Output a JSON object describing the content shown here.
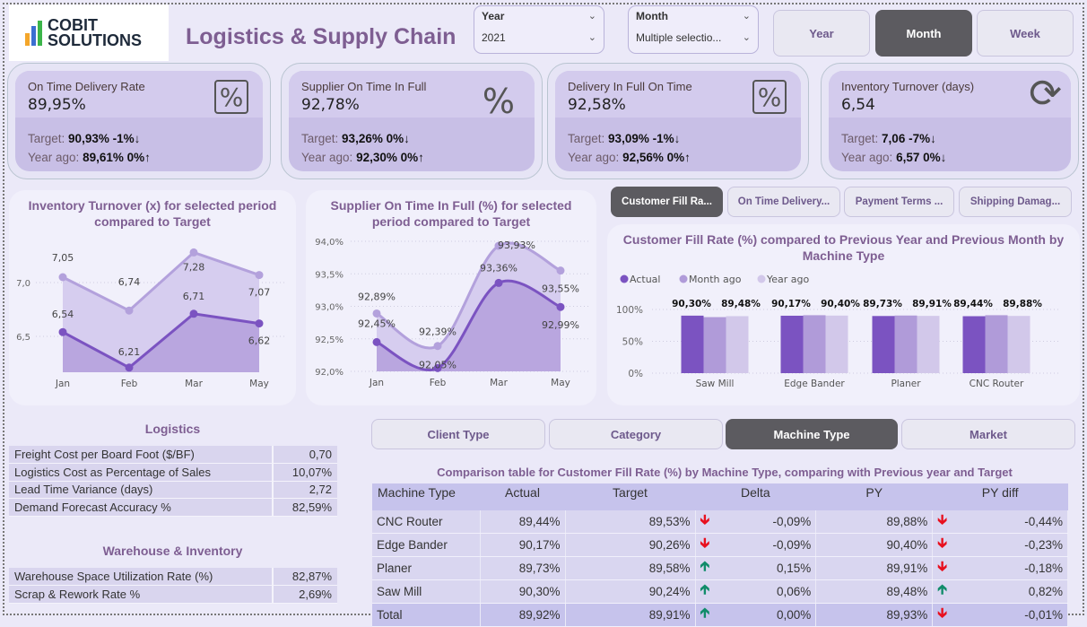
{
  "header": {
    "logo_line1": "COBIT",
    "logo_line2": "SOLUTIONS",
    "title": "Logistics & Supply Chain"
  },
  "slicers": [
    {
      "label": "Year",
      "value": "2021"
    },
    {
      "label": "Month",
      "value": "Multiple selectio..."
    }
  ],
  "period_buttons": [
    {
      "label": "Year",
      "active": false
    },
    {
      "label": "Month",
      "active": true
    },
    {
      "label": "Week",
      "active": false
    }
  ],
  "kpis": [
    {
      "name": "On Time Delivery Rate",
      "value": "89,95%",
      "icon": "percent-box-icon",
      "target": "90,93%",
      "target_delta": "-1%",
      "target_dir": "down",
      "year_ago": "89,61%",
      "year_delta": "0%",
      "year_dir": "up"
    },
    {
      "name": "Supplier On Time In Full",
      "value": "92,78%",
      "icon": "percent-icon",
      "target": "93,26%",
      "target_delta": "0%",
      "target_dir": "down",
      "year_ago": "92,30%",
      "year_delta": "0%",
      "year_dir": "up"
    },
    {
      "name": "Delivery In Full On Time",
      "value": "92,58%",
      "icon": "percent-box-icon",
      "target": "93,09%",
      "target_delta": "-1%",
      "target_dir": "down",
      "year_ago": "92,56%",
      "year_delta": "0%",
      "year_dir": "up"
    },
    {
      "name": "Inventory Turnover (days)",
      "value": "6,54",
      "icon": "refresh-icon",
      "target": "7,06",
      "target_delta": "-7%",
      "target_dir": "down",
      "year_ago": "6,57",
      "year_delta": "0%",
      "year_dir": "down"
    }
  ],
  "kpi_labels": {
    "target": "Target:",
    "year_ago": "Year ago:"
  },
  "metric_tabs": [
    {
      "label": "Customer Fill Ra...",
      "active": true
    },
    {
      "label": "On Time Delivery...",
      "active": false
    },
    {
      "label": "Payment Terms ...",
      "active": false
    },
    {
      "label": "Shipping Damag...",
      "active": false
    }
  ],
  "dimension_tabs": [
    {
      "label": "Client Type",
      "active": false
    },
    {
      "label": "Category",
      "active": false
    },
    {
      "label": "Machine Type",
      "active": true
    },
    {
      "label": "Market",
      "active": false
    }
  ],
  "chart_data": [
    {
      "type": "area",
      "title": "Inventory Turnover (x) for selected period compared to Target",
      "categories": [
        "Jan",
        "Feb",
        "Mar",
        "May"
      ],
      "series": [
        {
          "values": [
            7.05,
            6.74,
            7.28,
            7.07
          ],
          "labels": [
            "7,05",
            "6,74",
            "7,28",
            "7,07"
          ],
          "color": "#b3a1dc"
        },
        {
          "values": [
            6.54,
            6.21,
            6.71,
            6.62
          ],
          "labels": [
            "6,54",
            "6,21",
            "6,71",
            "6,62"
          ],
          "color": "#7b53c1"
        }
      ],
      "yticks": [
        {
          "v": 7.0,
          "label": "7,0"
        },
        {
          "v": 6.5,
          "label": "6,5"
        }
      ],
      "grid": true
    },
    {
      "type": "area",
      "title": "Supplier On Time In Full (%) for selected period compared to Target",
      "categories": [
        "Jan",
        "Feb",
        "Mar",
        "May"
      ],
      "series": [
        {
          "values": [
            92.89,
            92.39,
            93.93,
            93.55
          ],
          "labels": [
            "92,89%",
            "92,39%",
            "93,93%",
            "93,55%"
          ],
          "color": "#b3a1dc"
        },
        {
          "values": [
            92.45,
            92.05,
            93.36,
            92.99
          ],
          "labels": [
            "92,45%",
            "92,05%",
            "93,36%",
            "92,99%"
          ],
          "color": "#7b53c1"
        }
      ],
      "yticks": [
        {
          "v": 94.0,
          "label": "94,0%"
        },
        {
          "v": 93.5,
          "label": "93,5%"
        },
        {
          "v": 93.0,
          "label": "93,0%"
        },
        {
          "v": 92.5,
          "label": "92,5%"
        },
        {
          "v": 92.0,
          "label": "92,0%"
        }
      ],
      "ylim": [
        92.0,
        94.0
      ],
      "grid": true
    },
    {
      "type": "bar",
      "title": "Customer Fill Rate (%) compared to Previous Year and Previous Month by Machine Type",
      "categories": [
        "Saw Mill",
        "Edge Bander",
        "Planer",
        "CNC Router"
      ],
      "series": [
        {
          "name": "Actual",
          "values": [
            90.3,
            90.17,
            89.73,
            89.44
          ],
          "labels": [
            "90,30%",
            "90,17%",
            "89,73%",
            "89,44%"
          ],
          "color": "#7b53c1"
        },
        {
          "name": "Month ago",
          "values": [
            88.0,
            91.0,
            90.5,
            91.0
          ],
          "color": "#b09bd9"
        },
        {
          "name": "Year ago",
          "values": [
            89.48,
            90.4,
            89.91,
            89.88
          ],
          "labels": [
            "89,48%",
            "90,40%",
            "89,91%",
            "89,88%"
          ],
          "color": "#d2c8ea"
        }
      ],
      "yticks": [
        {
          "v": 100,
          "label": "100%"
        },
        {
          "v": 50,
          "label": "50%"
        },
        {
          "v": 0,
          "label": "0%"
        }
      ],
      "ylim": [
        0,
        100
      ],
      "legend": "top-left",
      "grid": true
    }
  ],
  "logistics": {
    "title": "Logistics",
    "rows": [
      [
        "Freight Cost per Board Foot ($/BF)",
        "0,70"
      ],
      [
        "Logistics Cost as Percentage of Sales",
        "10,07%"
      ],
      [
        "Lead Time Variance (days)",
        "2,72"
      ],
      [
        "Demand Forecast Accuracy %",
        "82,59%"
      ]
    ]
  },
  "warehouse": {
    "title": "Warehouse & Inventory",
    "rows": [
      [
        "Warehouse Space Utilization Rate (%)",
        "82,87%"
      ],
      [
        "Scrap & Rework Rate %",
        "2,69%"
      ]
    ]
  },
  "comparison": {
    "title": "Comparison table for Customer Fill Rate (%) by Machine Type, comparing with Previous year and Target",
    "columns": [
      "Machine Type",
      "Actual",
      "Target",
      "Delta",
      "PY",
      "PY diff"
    ],
    "rows": [
      [
        "CNC Router",
        "89,44%",
        "89,53%",
        "down",
        "-0,09%",
        "89,88%",
        "down",
        "-0,44%"
      ],
      [
        "Edge Bander",
        "90,17%",
        "90,26%",
        "down",
        "-0,09%",
        "90,40%",
        "down",
        "-0,23%"
      ],
      [
        "Planer",
        "89,73%",
        "89,58%",
        "up",
        "0,15%",
        "89,91%",
        "down",
        "-0,18%"
      ],
      [
        "Saw Mill",
        "90,30%",
        "90,24%",
        "up",
        "0,06%",
        "89,48%",
        "up",
        "0,82%"
      ],
      [
        "Total",
        "89,92%",
        "89,91%",
        "up",
        "0,00%",
        "89,93%",
        "down",
        "-0,01%"
      ]
    ]
  },
  "colors": {
    "accent": "#7e5e92",
    "negative": "#e8101e",
    "positive": "#118c6a",
    "active_button": "#5c5b60"
  }
}
